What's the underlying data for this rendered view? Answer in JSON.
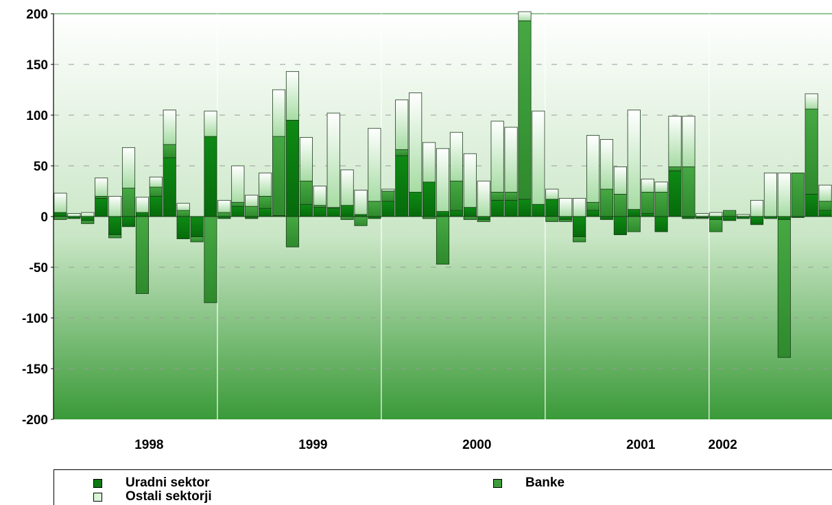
{
  "colors": {
    "uradni": "#0b7a10",
    "banke": "#3d9d3a",
    "ostali": "#d9f5d7",
    "bar_stroke": "#1a3a1a",
    "bg_top": "#ffffff",
    "bg_bottom": "#3a9a38"
  },
  "legend": {
    "uradni": "Uradni sektor",
    "banke": "Banke",
    "ostali": "Ostali sektorji"
  },
  "chart_data": {
    "type": "bar",
    "stacked": true,
    "ylim": [
      -200,
      200
    ],
    "yticks": [
      200,
      150,
      100,
      50,
      0,
      -50,
      -100,
      -150,
      -200
    ],
    "year_labels": [
      {
        "label": "1998",
        "center_index": 6.5
      },
      {
        "label": "1999",
        "center_index": 18.5
      },
      {
        "label": "2000",
        "center_index": 30.5
      },
      {
        "label": "2001",
        "center_index": 42.5
      },
      {
        "label": "2002",
        "center_index": 48.5
      }
    ],
    "year_separators_after_index": [
      11,
      23,
      35,
      47
    ],
    "series": [
      {
        "key": "uradni",
        "name": "Uradni sektor",
        "values": [
          4,
          -2,
          -4,
          18,
          -18,
          -10,
          4,
          20,
          58,
          -22,
          -20,
          79,
          -2,
          10,
          -2,
          8,
          1,
          95,
          12,
          9,
          8,
          11,
          2,
          -2,
          15,
          60,
          24,
          34,
          5,
          6,
          9,
          -3,
          16,
          16,
          17,
          12,
          17,
          -3,
          -20,
          6,
          -3,
          -18,
          7,
          3,
          -15,
          45,
          -2,
          -1,
          -3,
          -4,
          -2,
          -8,
          -2,
          -3,
          -1,
          22,
          6
        ]
      },
      {
        "key": "banke",
        "name": "Banke",
        "values": [
          -3,
          0,
          -3,
          2,
          -3,
          28,
          -76,
          9,
          13,
          6,
          -5,
          -85,
          4,
          4,
          10,
          12,
          78,
          -30,
          23,
          2,
          1,
          -3,
          -9,
          15,
          10,
          6,
          0,
          -2,
          -47,
          29,
          -3,
          -2,
          8,
          8,
          176,
          0,
          -5,
          -2,
          -5,
          8,
          27,
          22,
          -15,
          21,
          24,
          4,
          49,
          -1,
          -12,
          6,
          0,
          0,
          0,
          -136,
          43,
          84,
          9
        ]
      },
      {
        "key": "ostali",
        "name": "Ostali sektorji",
        "values": [
          19,
          3,
          4,
          18,
          20,
          40,
          15,
          10,
          34,
          7,
          0,
          25,
          12,
          36,
          11,
          23,
          46,
          48,
          43,
          19,
          93,
          35,
          24,
          72,
          2,
          49,
          98,
          39,
          62,
          48,
          53,
          35,
          70,
          64,
          9,
          92,
          10,
          18,
          18,
          66,
          49,
          27,
          98,
          13,
          10,
          50,
          50,
          3,
          4,
          0,
          2,
          16,
          43,
          43,
          0,
          15,
          16
        ]
      }
    ]
  }
}
